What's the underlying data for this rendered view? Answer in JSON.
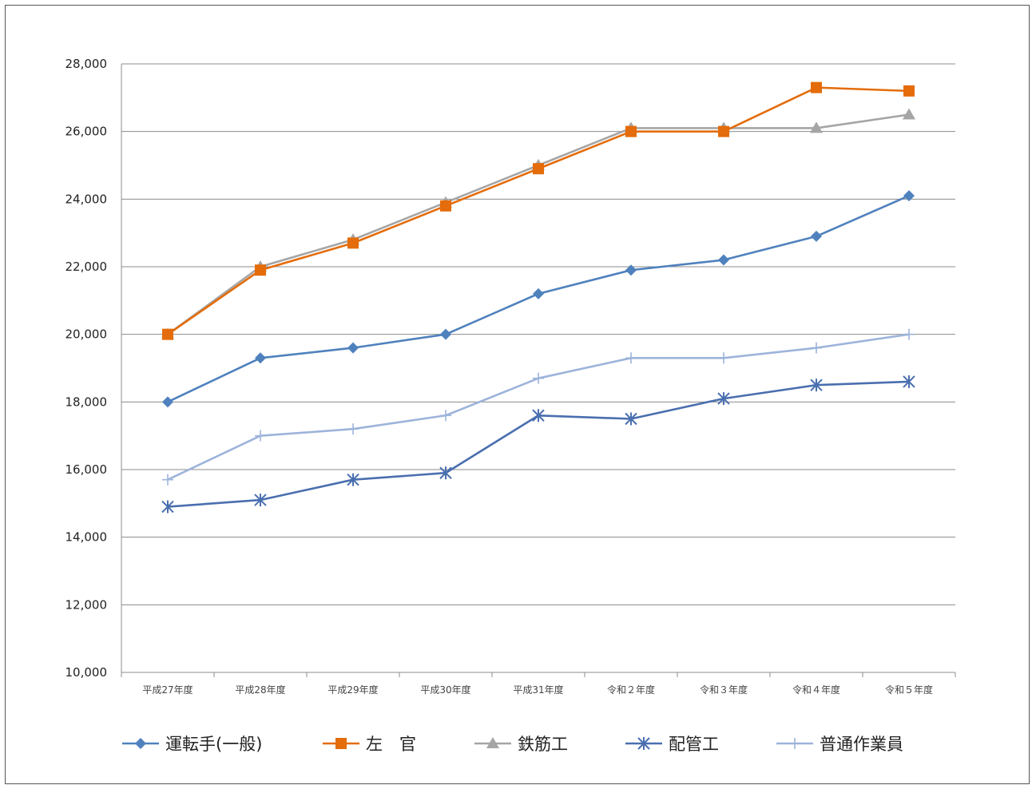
{
  "chart_data": {
    "type": "line",
    "title": "",
    "xlabel": "",
    "ylabel": "",
    "categories": [
      "平成27年度",
      "平成28年度",
      "平成29年度",
      "平成30年度",
      "平成31年度",
      "令和２年度",
      "令和３年度",
      "令和４年度",
      "令和５年度"
    ],
    "yticks": [
      "10,000",
      "12,000",
      "14,000",
      "16,000",
      "18,000",
      "20,000",
      "22,000",
      "24,000",
      "26,000",
      "28,000"
    ],
    "ylim": [
      10000,
      28000
    ],
    "grid": "horizontal",
    "legend_position": "bottom",
    "series": [
      {
        "name": "運転手(一般)",
        "color": "#4F81BD",
        "marker": "diamond",
        "values": [
          18000,
          19300,
          19600,
          20000,
          21200,
          21900,
          22200,
          22900,
          24100
        ]
      },
      {
        "name": "左　官",
        "color": "#E46C0A",
        "marker": "square",
        "values": [
          20000,
          21900,
          22700,
          23800,
          24900,
          26000,
          26000,
          27300,
          27200
        ]
      },
      {
        "name": "鉄筋工",
        "color": "#A5A5A5",
        "marker": "triangle",
        "values": [
          20000,
          22000,
          22800,
          23900,
          25000,
          26100,
          26100,
          26100,
          26500
        ]
      },
      {
        "name": "配管工",
        "color": "#4A6FAF",
        "marker": "star",
        "values": [
          14900,
          15100,
          15700,
          15900,
          17600,
          17500,
          18100,
          18500,
          18600
        ]
      },
      {
        "name": "普通作業員",
        "color": "#9DB4DB",
        "marker": "plus",
        "values": [
          15700,
          17000,
          17200,
          17600,
          18700,
          19300,
          19300,
          19600,
          20000
        ]
      }
    ]
  }
}
